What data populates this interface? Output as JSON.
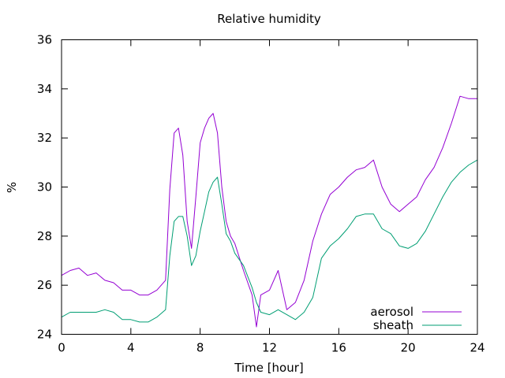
{
  "chart_data": {
    "type": "line",
    "title": "Relative humidity",
    "xlabel": "Time [hour]",
    "ylabel": "%",
    "xlim": [
      0,
      24
    ],
    "ylim": [
      24,
      36
    ],
    "xticks": [
      0,
      4,
      8,
      12,
      16,
      20,
      24
    ],
    "yticks": [
      24,
      26,
      28,
      30,
      32,
      34,
      36
    ],
    "grid": false,
    "legend_position": "bottom-right",
    "series": [
      {
        "name": "aerosol",
        "color": "#9400d3",
        "x": [
          0,
          0.5,
          1,
          1.5,
          2,
          2.5,
          3,
          3.5,
          4,
          4.5,
          5,
          5.5,
          6,
          6.25,
          6.5,
          6.75,
          7,
          7.25,
          7.5,
          7.75,
          8,
          8.25,
          8.5,
          8.75,
          9,
          9.25,
          9.5,
          9.75,
          10,
          10.5,
          11,
          11.25,
          11.5,
          12,
          12.5,
          13,
          13.5,
          14,
          14.5,
          15,
          15.5,
          16,
          16.5,
          17,
          17.5,
          18,
          18.5,
          19,
          19.5,
          20,
          20.5,
          21,
          21.5,
          22,
          22.5,
          23,
          23.5,
          24
        ],
        "values": [
          26.4,
          26.6,
          26.7,
          26.4,
          26.5,
          26.2,
          26.1,
          25.8,
          25.8,
          25.6,
          25.6,
          25.8,
          26.2,
          29.9,
          32.2,
          32.4,
          31.3,
          28.6,
          27.5,
          29.6,
          31.8,
          32.4,
          32.8,
          33.0,
          32.2,
          30.0,
          28.6,
          28.0,
          27.7,
          26.6,
          25.6,
          24.3,
          25.6,
          25.8,
          26.6,
          25.0,
          25.3,
          26.2,
          27.8,
          28.9,
          29.7,
          30.0,
          30.4,
          30.7,
          30.8,
          31.1,
          30.0,
          29.3,
          29.0,
          29.3,
          29.6,
          30.3,
          30.8,
          31.6,
          32.6,
          33.7,
          33.6,
          33.6
        ]
      },
      {
        "name": "sheath",
        "color": "#009e73",
        "x": [
          0,
          0.5,
          1,
          1.5,
          2,
          2.5,
          3,
          3.5,
          4,
          4.5,
          5,
          5.5,
          6,
          6.25,
          6.5,
          6.75,
          7,
          7.25,
          7.5,
          7.75,
          8,
          8.25,
          8.5,
          8.75,
          9,
          9.25,
          9.5,
          9.75,
          10,
          10.5,
          11,
          11.25,
          11.5,
          12,
          12.5,
          13,
          13.5,
          14,
          14.5,
          15,
          15.5,
          16,
          16.5,
          17,
          17.5,
          18,
          18.5,
          19,
          19.5,
          20,
          20.5,
          21,
          21.5,
          22,
          22.5,
          23,
          23.5,
          24
        ],
        "values": [
          24.7,
          24.9,
          24.9,
          24.9,
          24.9,
          25.0,
          24.9,
          24.6,
          24.6,
          24.5,
          24.5,
          24.7,
          25.0,
          27.2,
          28.6,
          28.8,
          28.8,
          28.0,
          26.8,
          27.2,
          28.2,
          29.0,
          29.8,
          30.2,
          30.4,
          29.3,
          28.1,
          27.8,
          27.3,
          26.8,
          25.9,
          25.3,
          24.9,
          24.8,
          25.0,
          24.8,
          24.6,
          24.9,
          25.5,
          27.1,
          27.6,
          27.9,
          28.3,
          28.8,
          28.9,
          28.9,
          28.3,
          28.1,
          27.6,
          27.5,
          27.7,
          28.2,
          28.9,
          29.6,
          30.2,
          30.6,
          30.9,
          31.1
        ]
      }
    ]
  }
}
